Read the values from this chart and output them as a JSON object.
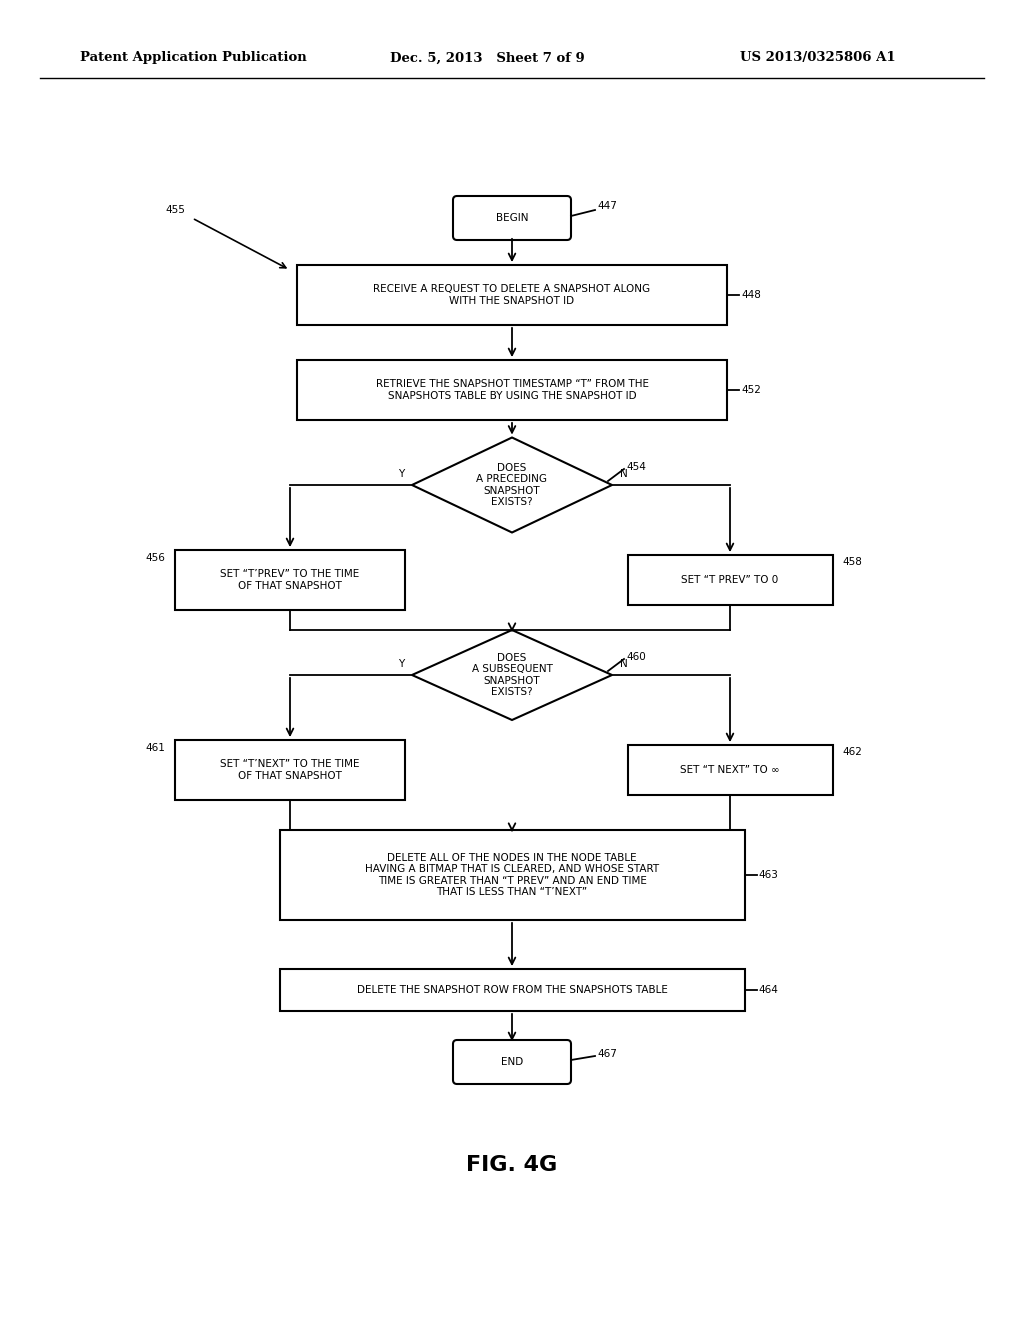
{
  "header_left": "Patent Application Publication",
  "header_mid": "Dec. 5, 2013   Sheet 7 of 9",
  "header_right": "US 2013/0325806 A1",
  "fig_label": "FIG. 4G",
  "background": "#ffffff",
  "line_color": "#000000",
  "text_color": "#000000",
  "fontsize": 7.5,
  "header_fontsize": 9.5,
  "fig_fontsize": 16
}
